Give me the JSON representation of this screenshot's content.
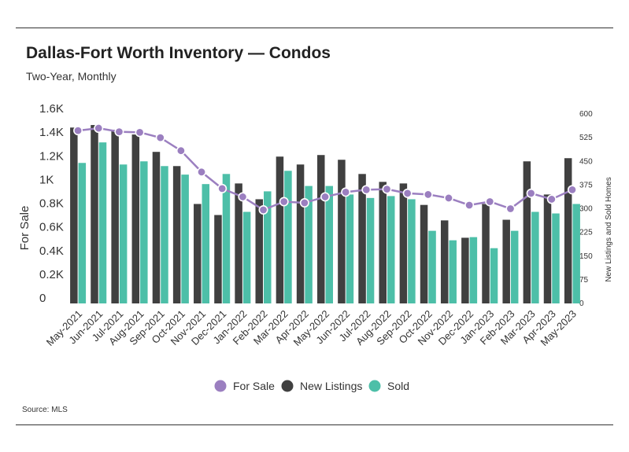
{
  "title": "Dallas-Fort Worth Inventory — Condos",
  "subtitle": "Two-Year, Monthly",
  "source": "Source: MLS",
  "chart_data": {
    "type": "bar",
    "categories": [
      "May-2021",
      "Jun-2021",
      "Jul-2021",
      "Aug-2021",
      "Sep-2021",
      "Oct-2021",
      "Nov-2021",
      "Dec-2021",
      "Jan-2022",
      "Feb-2022",
      "Mar-2022",
      "Apr-2022",
      "May-2022",
      "Jun-2022",
      "Jul-2022",
      "Aug-2022",
      "Sep-2022",
      "Oct-2022",
      "Nov-2022",
      "Dec-2022",
      "Jan-2023",
      "Feb-2023",
      "Mar-2023",
      "Apr-2023",
      "May-2023"
    ],
    "series": [
      {
        "name": "For Sale",
        "kind": "line",
        "axis": "left",
        "color": "#9b7fc0",
        "values": [
          1460,
          1480,
          1450,
          1445,
          1400,
          1290,
          1110,
          970,
          900,
          790,
          860,
          850,
          900,
          940,
          960,
          965,
          930,
          920,
          890,
          830,
          860,
          800,
          930,
          880,
          960
        ]
      },
      {
        "name": "New Listings",
        "kind": "bar",
        "axis": "right",
        "color": "#404040",
        "values": [
          557,
          565,
          550,
          535,
          480,
          435,
          315,
          280,
          380,
          330,
          465,
          440,
          470,
          455,
          410,
          385,
          380,
          312,
          263,
          208,
          315,
          265,
          450,
          345,
          460
        ]
      },
      {
        "name": "Sold",
        "kind": "bar",
        "axis": "right",
        "color": "#4dbfa8",
        "values": [
          445,
          510,
          440,
          450,
          435,
          408,
          378,
          410,
          290,
          355,
          420,
          372,
          372,
          345,
          334,
          340,
          330,
          230,
          200,
          210,
          175,
          230,
          290,
          285,
          315
        ]
      }
    ],
    "y_left": {
      "label": "For Sale",
      "ticks": [
        "0",
        "0.2K",
        "0.4K",
        "0.6K",
        "0.8K",
        "1K",
        "1.2K",
        "1.4K",
        "1.6K"
      ],
      "min": 0,
      "max": 1600
    },
    "y_right": {
      "label": "New Listings and Sold Homes",
      "ticks": [
        "0",
        "75",
        "150",
        "225",
        "300",
        "375",
        "450",
        "525",
        "600"
      ],
      "min": 0,
      "max": 600
    },
    "grid": false,
    "legend": {
      "position": "bottom",
      "items": [
        "For Sale",
        "New Listings",
        "Sold"
      ]
    }
  }
}
